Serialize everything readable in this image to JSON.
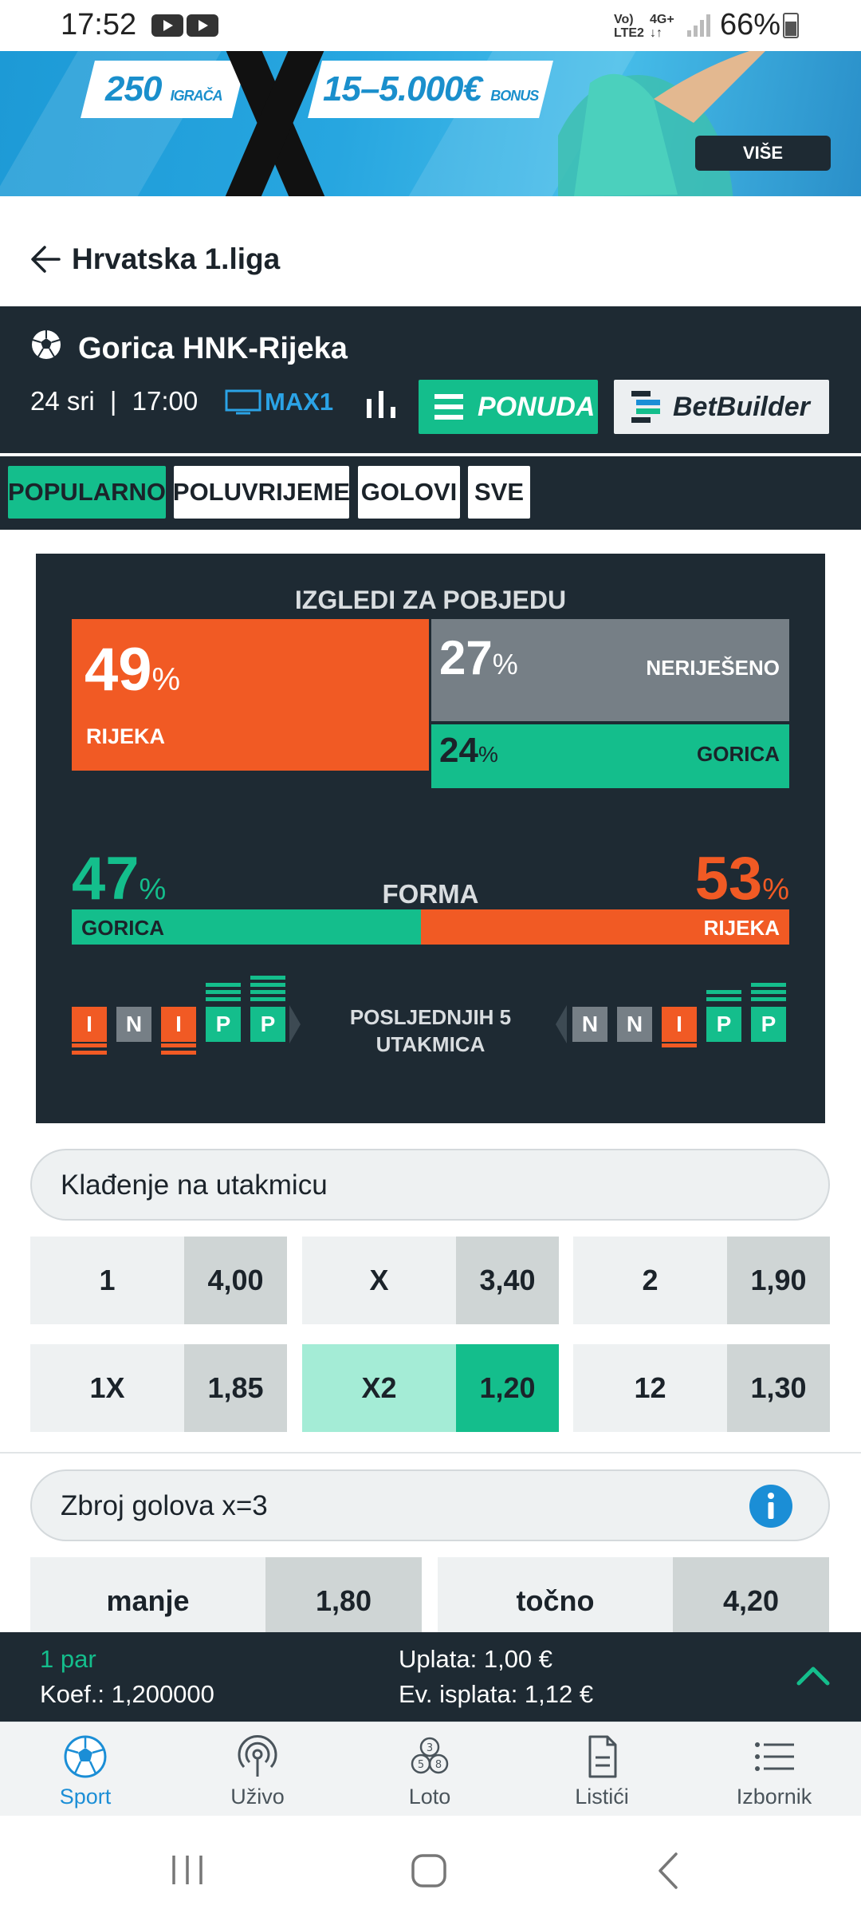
{
  "status_bar": {
    "time": "17:52",
    "network_left": [
      "Vo)",
      "LTE2"
    ],
    "network_right": [
      "4G+",
      "↓↑"
    ],
    "battery": "66%"
  },
  "banner": {
    "players": "250",
    "players_unit": "IGRAČA",
    "bonus": "15–5.000€",
    "bonus_unit": "BONUS",
    "more_label": "VIŠE"
  },
  "header": {
    "title": "Hrvatska 1.liga"
  },
  "match": {
    "title": "Gorica HNK-Rijeka",
    "date": "24 sri",
    "separator": "|",
    "time": "17:00",
    "channel": "MAX1",
    "ponuda_label": "PONUDA",
    "betbuilder_label": "BetBuilder"
  },
  "tabs": [
    {
      "label": "POPULARNO",
      "active": true
    },
    {
      "label": "POLUVRIJEME",
      "active": false
    },
    {
      "label": "GOLOVI",
      "active": false
    },
    {
      "label": "SVE",
      "active": false
    }
  ],
  "stats": {
    "title": "IZGLEDI ZA POBJEDU",
    "pct_sign": "%",
    "rijeka": {
      "value": "49",
      "label": "RIJEKA"
    },
    "draw": {
      "value": "27",
      "label": "NERIJEŠENO"
    },
    "gorica": {
      "value": "24",
      "label": "GORICA"
    },
    "form_title": "FORMA",
    "form_left": {
      "value": "47",
      "label": "GORICA"
    },
    "form_right": {
      "value": "53",
      "label": "RIJEKA"
    },
    "last5_line1": "POSLJEDNJIH 5",
    "last5_line2": "UTAKMICA",
    "left_results": [
      "I",
      "N",
      "I",
      "P",
      "P"
    ],
    "right_results": [
      "N",
      "N",
      "I",
      "P",
      "P"
    ]
  },
  "markets": [
    {
      "title": "Klađenje na utakmicu",
      "odds": [
        {
          "label": "1",
          "value": "4,00",
          "selected": false
        },
        {
          "label": "X",
          "value": "3,40",
          "selected": false
        },
        {
          "label": "2",
          "value": "1,90",
          "selected": false
        },
        {
          "label": "1X",
          "value": "1,85",
          "selected": false
        },
        {
          "label": "X2",
          "value": "1,20",
          "selected": true
        },
        {
          "label": "12",
          "value": "1,30",
          "selected": false
        }
      ]
    },
    {
      "title": "Zbroj golova x=3",
      "odds": [
        {
          "label": "manje",
          "value": "1,80"
        },
        {
          "label": "točno",
          "value": "4,20"
        }
      ]
    }
  ],
  "slip": {
    "count": "1 par",
    "koef": "Koef.: 1,200000",
    "uplata": "Uplata: 1,00 €",
    "isplata": "Ev. isplata: 1,12 €"
  },
  "bottom_nav": [
    {
      "label": "Sport",
      "icon": "soccer-ball-icon",
      "active": true
    },
    {
      "label": "Uživo",
      "icon": "broadcast-icon",
      "active": false
    },
    {
      "label": "Loto",
      "icon": "lottery-balls-icon",
      "active": false
    },
    {
      "label": "Listići",
      "icon": "document-icon",
      "active": false
    },
    {
      "label": "Izbornik",
      "icon": "menu-list-icon",
      "active": false
    }
  ],
  "colors": {
    "dark": "#1e2a33",
    "green": "#14be8c",
    "orange": "#f15a24",
    "grey": "#767f86",
    "blue": "#1b8ed6"
  }
}
